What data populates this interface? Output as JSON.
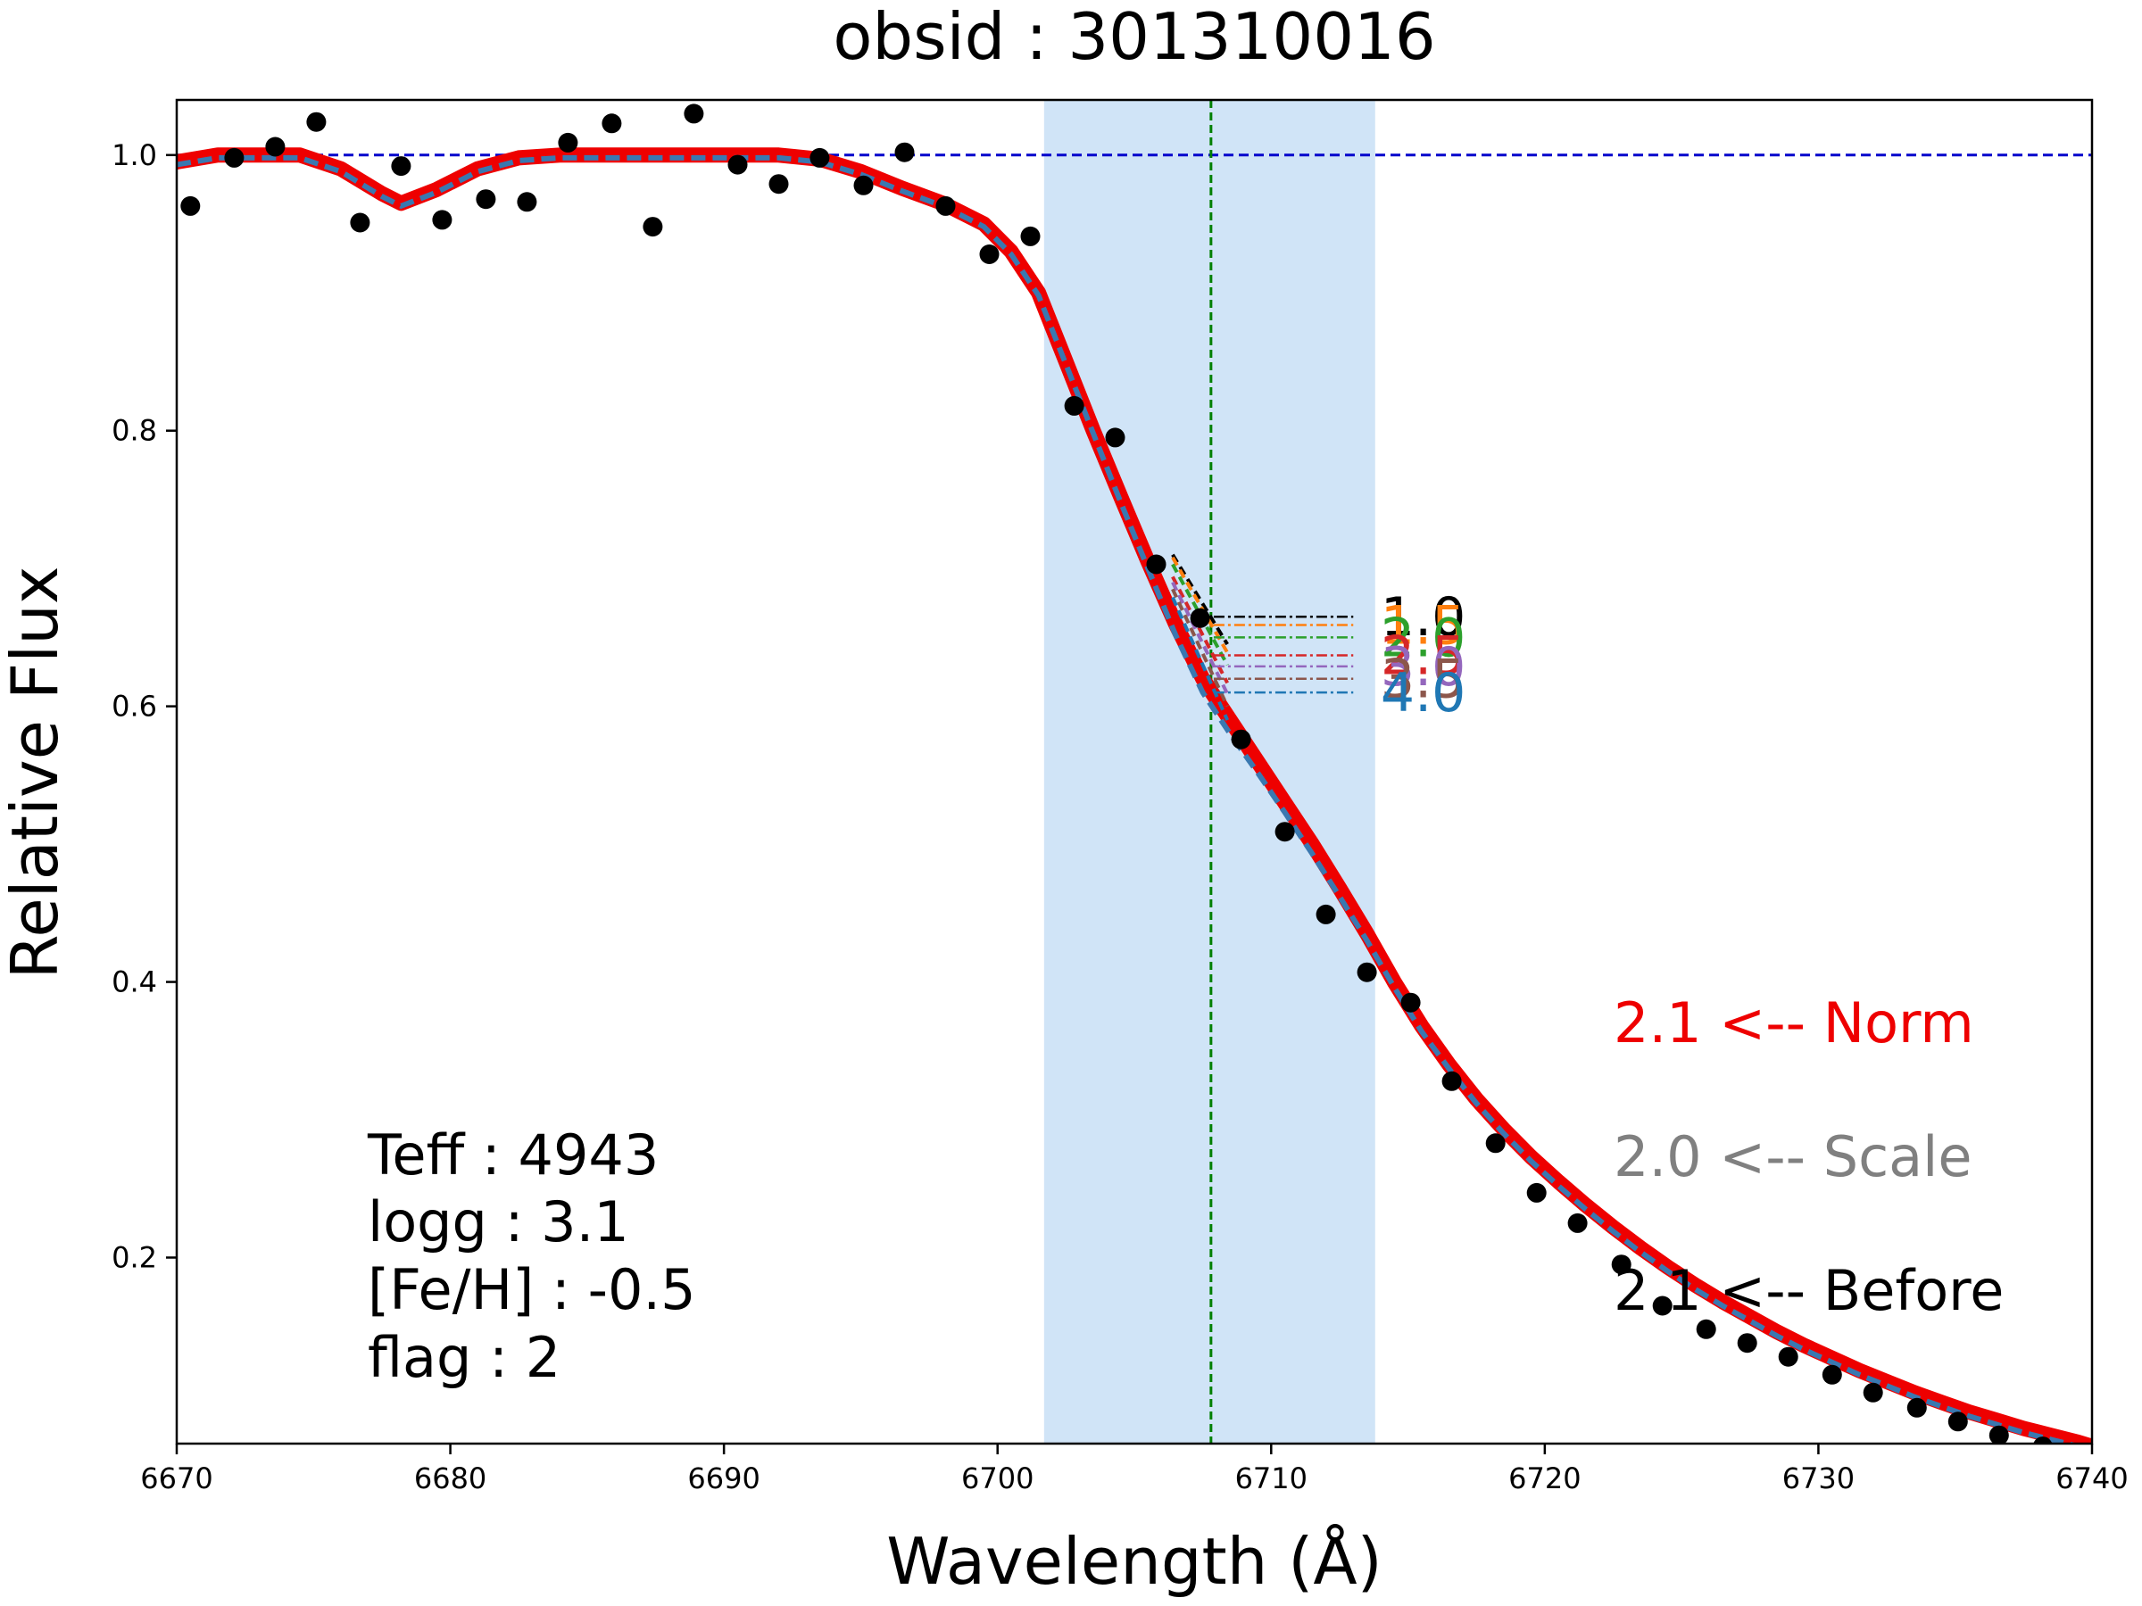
{
  "chart_data": {
    "type": "line",
    "title": "obsid : 301310016",
    "xlabel": "Wavelength (Å)",
    "ylabel": "Relative Flux",
    "xlim": [
      6670,
      6740
    ],
    "ylim": [
      0.065,
      1.04
    ],
    "xticks": [
      "6670",
      "6680",
      "6690",
      "6700",
      "6710",
      "6720",
      "6730",
      "6740"
    ],
    "yticks": [
      "0.2",
      "0.4",
      "0.6",
      "0.8",
      "1.0"
    ],
    "grid": false,
    "highlight_band": {
      "x": [
        6701.7,
        6713.8
      ],
      "color": "#d0e4f7"
    },
    "reference_line": {
      "y": 1.0,
      "color": "#0000cc",
      "style": "dashed"
    },
    "line_center": {
      "x": 6707.8,
      "color": "#008000",
      "style": "dashed"
    },
    "fit_curve": {
      "color": "#ee0000",
      "x": [
        6670,
        6671.5,
        6673,
        6674.5,
        6676,
        6677.5,
        6678.2,
        6679.5,
        6681,
        6682.5,
        6684,
        6686,
        6688,
        6690,
        6692,
        6693.5,
        6695,
        6696.5,
        6698,
        6699.5,
        6700.5,
        6701.5,
        6702.5,
        6703.5,
        6704.5,
        6705.5,
        6706.5,
        6707.5,
        6708.5,
        6709.5,
        6710.5,
        6711.5,
        6712.5,
        6713.5,
        6714.5,
        6715.5,
        6716.5,
        6717.5,
        6718.5,
        6719.5,
        6720.5,
        6721.5,
        6722.5,
        6723.5,
        6724.5,
        6725.5,
        6726.5,
        6727.5,
        6728.5,
        6729.5,
        6730.5,
        6731.5,
        6732.5,
        6733.5,
        6734.5,
        6735.5,
        6736.5,
        6737.5,
        6738.5,
        6739.5,
        6740
      ],
      "y": [
        0.995,
        1.0,
        1.0,
        1.0,
        0.99,
        0.972,
        0.965,
        0.975,
        0.99,
        0.998,
        1.0,
        1.0,
        1.0,
        1.0,
        1.0,
        0.997,
        0.988,
        0.976,
        0.965,
        0.95,
        0.93,
        0.9,
        0.85,
        0.8,
        0.752,
        0.705,
        0.66,
        0.62,
        0.59,
        0.56,
        0.53,
        0.5,
        0.468,
        0.435,
        0.4,
        0.368,
        0.34,
        0.315,
        0.293,
        0.273,
        0.255,
        0.238,
        0.222,
        0.207,
        0.193,
        0.18,
        0.168,
        0.157,
        0.146,
        0.136,
        0.127,
        0.118,
        0.11,
        0.102,
        0.095,
        0.088,
        0.082,
        0.076,
        0.071,
        0.066,
        0.063
      ]
    },
    "model_curve": {
      "color": "#3a78b0",
      "x": [
        6670,
        6671.5,
        6673,
        6674.5,
        6676,
        6677.5,
        6678.2,
        6679.5,
        6681,
        6682.5,
        6684,
        6686,
        6688,
        6690,
        6692,
        6693.5,
        6695,
        6696.5,
        6698,
        6699.5,
        6700.5,
        6701.5,
        6702.5,
        6703.5,
        6704.5,
        6705.5,
        6706.5,
        6707.5,
        6708.5,
        6709.5,
        6710.5,
        6711.5,
        6712.5,
        6713.5,
        6714.5,
        6715.5,
        6716.5,
        6717.5,
        6718.5,
        6719.5,
        6720.5,
        6721.5,
        6722.5,
        6723.5,
        6724.5,
        6725.5,
        6726.5,
        6727.5,
        6728.5,
        6729.5,
        6730.5,
        6731.5,
        6732.5,
        6733.5,
        6734.5,
        6735.5,
        6736.5,
        6737.5,
        6738.5,
        6739.5,
        6740
      ],
      "y": [
        0.993,
        0.998,
        0.998,
        0.998,
        0.988,
        0.97,
        0.963,
        0.973,
        0.988,
        0.996,
        0.998,
        0.998,
        0.998,
        0.998,
        0.998,
        0.995,
        0.986,
        0.974,
        0.963,
        0.948,
        0.928,
        0.898,
        0.848,
        0.798,
        0.748,
        0.7,
        0.652,
        0.61,
        0.58,
        0.552,
        0.523,
        0.493,
        0.462,
        0.43,
        0.396,
        0.364,
        0.337,
        0.312,
        0.29,
        0.27,
        0.252,
        0.235,
        0.219,
        0.204,
        0.19,
        0.177,
        0.165,
        0.154,
        0.143,
        0.133,
        0.124,
        0.115,
        0.107,
        0.099,
        0.092,
        0.085,
        0.079,
        0.073,
        0.068,
        0.063,
        0.06
      ]
    },
    "observed_points": {
      "color": "#000000",
      "x": [
        6670.5,
        6672.1,
        6673.6,
        6675.1,
        6676.7,
        6678.2,
        6679.7,
        6681.3,
        6682.8,
        6684.3,
        6685.9,
        6687.4,
        6688.9,
        6690.5,
        6692.0,
        6693.5,
        6695.1,
        6696.6,
        6698.1,
        6699.7,
        6701.2,
        6702.8,
        6704.3,
        6705.8,
        6707.4,
        6708.9,
        6710.5,
        6712.0,
        6713.5,
        6715.1,
        6716.6,
        6718.2,
        6719.7,
        6721.2,
        6722.8,
        6724.3,
        6725.9,
        6727.4,
        6728.9,
        6730.5,
        6732.0,
        6733.6,
        6735.1,
        6736.6,
        6738.2
      ],
      "y": [
        0.963,
        0.998,
        1.006,
        1.024,
        0.951,
        0.992,
        0.953,
        0.968,
        0.966,
        1.009,
        1.023,
        0.948,
        1.03,
        0.993,
        0.979,
        0.998,
        0.978,
        1.002,
        0.963,
        0.928,
        0.941,
        0.818,
        0.795,
        0.703,
        0.664,
        0.576,
        0.509,
        0.449,
        0.407,
        0.385,
        0.328,
        0.283,
        0.247,
        0.225,
        0.195,
        0.165,
        0.148,
        0.138,
        0.128,
        0.115,
        0.102,
        0.091,
        0.081,
        0.071,
        0.063
      ]
    },
    "sensitivity_series": [
      {
        "label": "1.0",
        "y": 0.665,
        "color": "#000000"
      },
      {
        "label": "1.5",
        "y": 0.659,
        "color": "#ff7f0e"
      },
      {
        "label": "2.0",
        "y": 0.65,
        "color": "#2ca02c"
      },
      {
        "label": "2.5",
        "y": 0.637,
        "color": "#d62728"
      },
      {
        "label": "3.0",
        "y": 0.629,
        "color": "#9467bd"
      },
      {
        "label": "3.5",
        "y": 0.62,
        "color": "#8c564b"
      },
      {
        "label": "4.0",
        "y": 0.61,
        "color": "#1f77b4"
      }
    ],
    "annotations": {
      "norm": {
        "text": "2.1 <-- Norm",
        "color": "#ee0000"
      },
      "scale": {
        "text": "2.0 <-- Scale",
        "color": "#808080"
      },
      "before": {
        "text": "2.1 <-- Before",
        "color": "#000000"
      }
    },
    "params": {
      "teff": "Teff : 4943",
      "logg": "logg : 3.1",
      "feh": "[Fe/H] : -0.5",
      "flag": "flag : 2"
    }
  }
}
